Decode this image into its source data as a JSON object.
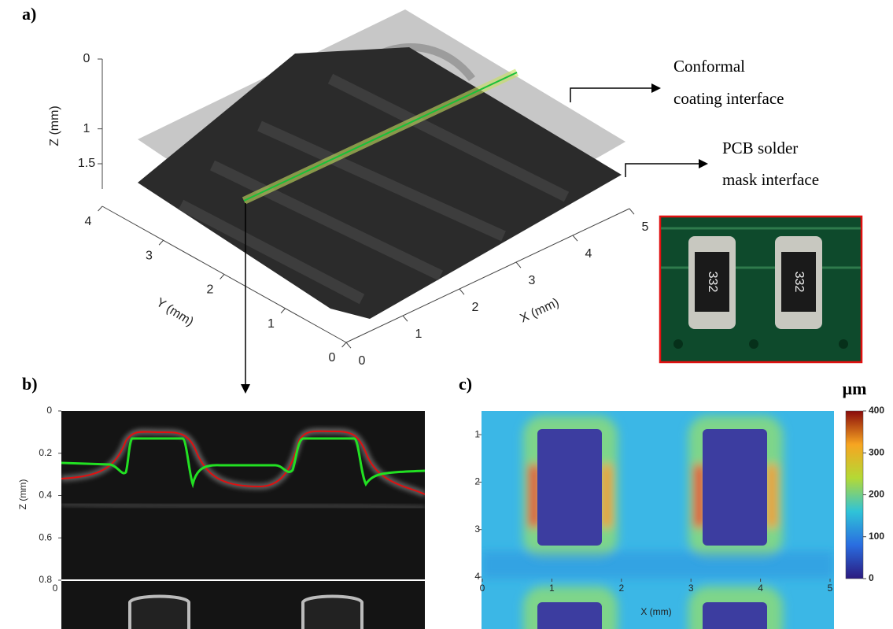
{
  "panel_a": {
    "label": "a)",
    "z_axis": {
      "label": "Z (mm)",
      "lim": [
        0,
        1.5
      ],
      "ticks": [
        0,
        1,
        1.5
      ]
    },
    "y_axis": {
      "label": "Y (mm)",
      "lim": [
        0,
        4
      ],
      "ticks": [
        0,
        1,
        2,
        3,
        4
      ]
    },
    "x_axis": {
      "label": "X (mm)",
      "lim": [
        0,
        5
      ],
      "ticks": [
        0,
        1,
        2,
        3,
        4,
        5
      ]
    },
    "annotations": [
      {
        "lines": [
          "Conformal",
          "coating interface"
        ]
      },
      {
        "lines": [
          "PCB solder",
          "mask interface"
        ]
      }
    ],
    "inset_markings": [
      "332",
      "332"
    ]
  },
  "panel_b": {
    "label": "b)",
    "y_axis": {
      "label": "Z (mm)",
      "lim": [
        0,
        0.8
      ],
      "ticks": [
        0,
        0.2,
        0.4,
        0.6,
        0.8
      ]
    },
    "x_axis": {
      "ticks": [
        0
      ]
    }
  },
  "panel_c": {
    "label": "c)",
    "x_axis": {
      "label": "X (mm)",
      "lim": [
        0,
        5
      ],
      "ticks": [
        0,
        1,
        2,
        3,
        4,
        5
      ]
    },
    "y_axis": {
      "lim": [
        0.5,
        4
      ],
      "ticks": [
        1,
        2,
        3,
        4
      ]
    },
    "colorbar": {
      "title": "μm",
      "lim": [
        0,
        400
      ],
      "ticks": [
        0,
        100,
        200,
        300,
        400
      ]
    }
  }
}
